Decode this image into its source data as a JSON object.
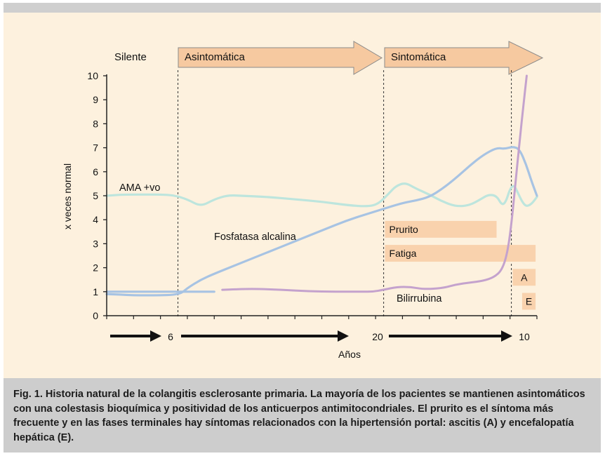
{
  "caption": "Fig. 1. Historia natural de la colangitis esclerosante primaria. La mayoría de los pacientes se mantienen asintomáticos con una colestasis bioquímica y positividad de los anticuerpos antimitocondriales. El prurito es el síntoma más frecuente y en las fases terminales hay síntomas relacionados con la hipertensión portal: ascitis (A) y encefalopatía hepática (E).",
  "colors": {
    "panel_bg": "#fdf1de",
    "caption_bg": "#cdcdcd",
    "arrow_fill": "#f6c9a0",
    "bar_fill": "#f9d2ad",
    "fosfatasa": "#a7c3e3",
    "ama": "#bde5dd",
    "bilirrubina": "#c4a2cd"
  },
  "phases": [
    {
      "label": "Silente",
      "arrow": false
    },
    {
      "label": "Asintomática",
      "arrow": true
    },
    {
      "label": "Sintomática",
      "arrow": true
    }
  ],
  "timeline": {
    "labels": [
      "6",
      "20",
      "10"
    ],
    "xlabel": "Años"
  },
  "chart_data": {
    "type": "line",
    "ylabel": "x veces normal",
    "ylim": [
      0,
      10
    ],
    "y_ticks": [
      0,
      1,
      2,
      3,
      4,
      5,
      6,
      7,
      8,
      9,
      10
    ],
    "x_range": [
      0,
      16
    ],
    "phase_dividers": [
      2.65,
      10.3,
      15.05
    ],
    "series": [
      {
        "name": "AMA +vo",
        "key": "ama",
        "points": [
          [
            0,
            5
          ],
          [
            0.5,
            5.04
          ],
          [
            1,
            5.05
          ],
          [
            1.5,
            5.05
          ],
          [
            2,
            5.05
          ],
          [
            2.5,
            5.02
          ],
          [
            3,
            4.85
          ],
          [
            3.5,
            4.55
          ],
          [
            4,
            4.85
          ],
          [
            4.5,
            5.02
          ],
          [
            5,
            5
          ],
          [
            6,
            4.95
          ],
          [
            7,
            4.85
          ],
          [
            8,
            4.75
          ],
          [
            9,
            4.6
          ],
          [
            9.7,
            4.55
          ],
          [
            10.1,
            4.65
          ],
          [
            10.5,
            5.1
          ],
          [
            10.75,
            5.4
          ],
          [
            11.1,
            5.55
          ],
          [
            11.5,
            5.3
          ],
          [
            12,
            5.05
          ],
          [
            12.5,
            4.75
          ],
          [
            13,
            4.55
          ],
          [
            13.5,
            4.6
          ],
          [
            13.9,
            4.85
          ],
          [
            14.2,
            5.05
          ],
          [
            14.5,
            5.0
          ],
          [
            14.7,
            4.6
          ],
          [
            14.85,
            4.75
          ],
          [
            15.0,
            5.3
          ],
          [
            15.15,
            5.45
          ],
          [
            15.3,
            5.1
          ],
          [
            15.45,
            4.75
          ],
          [
            15.6,
            4.55
          ],
          [
            15.8,
            4.65
          ],
          [
            16,
            4.95
          ]
        ]
      },
      {
        "name": "Fosfatasa alcalina",
        "key": "fosfatasa",
        "points": [
          [
            0,
            0.9
          ],
          [
            0.5,
            0.88
          ],
          [
            1,
            0.85
          ],
          [
            1.5,
            0.85
          ],
          [
            2,
            0.85
          ],
          [
            2.5,
            0.87
          ],
          [
            2.8,
            0.95
          ],
          [
            3,
            1.15
          ],
          [
            3.5,
            1.5
          ],
          [
            4,
            1.75
          ],
          [
            5,
            2.2
          ],
          [
            6,
            2.65
          ],
          [
            7,
            3.1
          ],
          [
            8,
            3.55
          ],
          [
            9,
            4.0
          ],
          [
            10,
            4.35
          ],
          [
            11,
            4.7
          ],
          [
            11.5,
            4.8
          ],
          [
            12,
            4.95
          ],
          [
            12.5,
            5.3
          ],
          [
            13,
            5.75
          ],
          [
            13.5,
            6.25
          ],
          [
            14,
            6.7
          ],
          [
            14.5,
            7.0
          ],
          [
            14.8,
            6.95
          ],
          [
            15.1,
            7.05
          ],
          [
            15.35,
            6.95
          ],
          [
            15.6,
            6.3
          ],
          [
            15.8,
            5.6
          ],
          [
            16,
            5.0
          ]
        ]
      },
      {
        "name": "Bilirrubina",
        "key": "bilirrubina",
        "points": [
          [
            4.3,
            1.08
          ],
          [
            4.8,
            1.1
          ],
          [
            5.5,
            1.12
          ],
          [
            6.5,
            1.08
          ],
          [
            7.5,
            1.02
          ],
          [
            8.5,
            1.0
          ],
          [
            9.5,
            1.0
          ],
          [
            9.9,
            1.0
          ],
          [
            10.3,
            1.08
          ],
          [
            10.8,
            1.2
          ],
          [
            11.3,
            1.2
          ],
          [
            11.8,
            1.1
          ],
          [
            12.5,
            1.15
          ],
          [
            13,
            1.3
          ],
          [
            13.5,
            1.38
          ],
          [
            14,
            1.45
          ],
          [
            14.4,
            1.6
          ],
          [
            14.7,
            1.9
          ],
          [
            14.9,
            2.6
          ],
          [
            15.05,
            3.8
          ],
          [
            15.2,
            5.5
          ],
          [
            15.35,
            7.2
          ],
          [
            15.5,
            8.8
          ],
          [
            15.62,
            10.0
          ]
        ]
      },
      {
        "name": "",
        "key": "baseline",
        "points": [
          [
            0,
            1.0
          ],
          [
            1,
            1.0
          ],
          [
            2,
            1.0
          ],
          [
            3,
            1.0
          ],
          [
            4,
            1.0
          ]
        ]
      }
    ],
    "symptom_bars": [
      {
        "label": "Prurito",
        "x0": 10.35,
        "x1": 14.5,
        "value": 3.6
      },
      {
        "label": "Fatiga",
        "x0": 10.35,
        "x1": 15.95,
        "value": 2.6
      },
      {
        "label": "A",
        "x0": 15.1,
        "x1": 15.95,
        "value": 1.6
      },
      {
        "label": "E",
        "x0": 15.45,
        "x1": 15.95,
        "value": 0.6
      }
    ]
  }
}
